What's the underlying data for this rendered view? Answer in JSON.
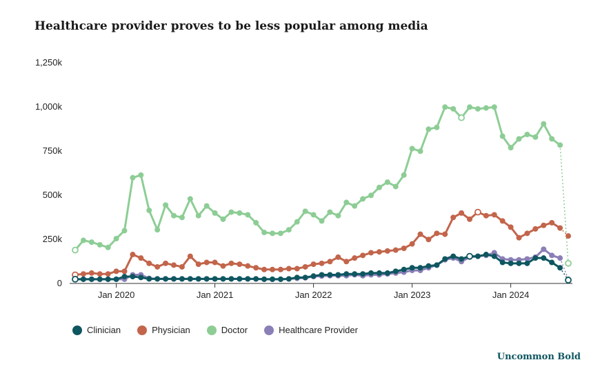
{
  "chart_data": {
    "type": "line",
    "title": "Healthcare provider proves to be less popular among media",
    "xlabel": "",
    "ylabel": "",
    "x": [
      "2019-08",
      "2019-09",
      "2019-10",
      "2019-11",
      "2019-12",
      "2020-01",
      "2020-02",
      "2020-03",
      "2020-04",
      "2020-05",
      "2020-06",
      "2020-07",
      "2020-08",
      "2020-09",
      "2020-10",
      "2020-11",
      "2020-12",
      "2021-01",
      "2021-02",
      "2021-03",
      "2021-04",
      "2021-05",
      "2021-06",
      "2021-07",
      "2021-08",
      "2021-09",
      "2021-10",
      "2021-11",
      "2021-12",
      "2022-01",
      "2022-02",
      "2022-03",
      "2022-04",
      "2022-05",
      "2022-06",
      "2022-07",
      "2022-08",
      "2022-09",
      "2022-10",
      "2022-11",
      "2022-12",
      "2023-01",
      "2023-02",
      "2023-03",
      "2023-04",
      "2023-05",
      "2023-06",
      "2023-07",
      "2023-08",
      "2023-09",
      "2023-10",
      "2023-11",
      "2023-12",
      "2024-01",
      "2024-02",
      "2024-03",
      "2024-04",
      "2024-05",
      "2024-06",
      "2024-07",
      "2024-08"
    ],
    "x_ticks": [
      "Jan 2020",
      "Jan 2021",
      "Jan 2022",
      "Jan 2023",
      "Jan 2024"
    ],
    "y_ticks": [
      "0",
      "250k",
      "500k",
      "750k",
      "1,000k",
      "1,250k"
    ],
    "ylim": [
      0,
      1250000
    ],
    "grid": false,
    "legend_position": "bottom-left",
    "series": [
      {
        "name": "Clinician",
        "color": "#0e5660",
        "values": [
          20000,
          20000,
          20000,
          20000,
          20000,
          20000,
          35000,
          35000,
          30000,
          22000,
          22000,
          22000,
          22000,
          22000,
          22000,
          22000,
          22000,
          22000,
          22000,
          22000,
          22000,
          22000,
          22000,
          20000,
          20000,
          20000,
          22000,
          30000,
          30000,
          38000,
          45000,
          45000,
          45000,
          50000,
          50000,
          50000,
          55000,
          55000,
          55000,
          65000,
          75000,
          85000,
          85000,
          95000,
          100000,
          135000,
          150000,
          135000,
          150000,
          150000,
          160000,
          150000,
          115000,
          110000,
          110000,
          110000,
          140000,
          140000,
          115000,
          85000,
          15000
        ],
        "hollow": [
          0,
          48,
          60
        ]
      },
      {
        "name": "Physician",
        "color": "#c2654b",
        "values": [
          45000,
          50000,
          55000,
          50000,
          50000,
          65000,
          65000,
          160000,
          140000,
          110000,
          90000,
          110000,
          100000,
          90000,
          150000,
          105000,
          115000,
          115000,
          95000,
          110000,
          105000,
          95000,
          85000,
          75000,
          75000,
          75000,
          80000,
          80000,
          90000,
          105000,
          110000,
          120000,
          145000,
          120000,
          140000,
          155000,
          170000,
          175000,
          180000,
          185000,
          195000,
          220000,
          275000,
          245000,
          280000,
          275000,
          370000,
          395000,
          360000,
          400000,
          380000,
          385000,
          350000,
          315000,
          255000,
          280000,
          305000,
          325000,
          340000,
          310000,
          265000
        ],
        "hollow": [
          0,
          49
        ]
      },
      {
        "name": "Doctor",
        "color": "#8dcd95",
        "values": [
          185000,
          240000,
          230000,
          215000,
          200000,
          250000,
          295000,
          595000,
          610000,
          410000,
          300000,
          440000,
          380000,
          370000,
          475000,
          380000,
          435000,
          395000,
          360000,
          400000,
          395000,
          385000,
          340000,
          285000,
          280000,
          280000,
          300000,
          345000,
          405000,
          385000,
          350000,
          400000,
          380000,
          455000,
          435000,
          475000,
          495000,
          540000,
          570000,
          545000,
          610000,
          760000,
          745000,
          870000,
          880000,
          995000,
          985000,
          935000,
          995000,
          985000,
          990000,
          995000,
          830000,
          765000,
          815000,
          840000,
          825000,
          900000,
          815000,
          780000,
          110000
        ],
        "hollow": [
          0,
          47,
          60
        ]
      },
      {
        "name": "Healthcare Provider",
        "color": "#8a7fb6",
        "values": [
          20000,
          20000,
          20000,
          20000,
          20000,
          20000,
          20000,
          45000,
          45000,
          25000,
          22000,
          22000,
          22000,
          22000,
          22000,
          22000,
          22000,
          22000,
          22000,
          22000,
          22000,
          22000,
          22000,
          20000,
          20000,
          20000,
          22000,
          25000,
          28000,
          35000,
          38000,
          40000,
          40000,
          40000,
          45000,
          40000,
          45000,
          45000,
          50000,
          55000,
          60000,
          70000,
          70000,
          85000,
          100000,
          130000,
          140000,
          120000,
          145000,
          150000,
          155000,
          170000,
          135000,
          130000,
          130000,
          135000,
          145000,
          190000,
          155000,
          140000,
          20000
        ],
        "hollow": []
      }
    ]
  },
  "legend": {
    "items": [
      "Clinician",
      "Physician",
      "Doctor",
      "Healthcare Provider"
    ]
  },
  "brand": "Uncommon Bold"
}
